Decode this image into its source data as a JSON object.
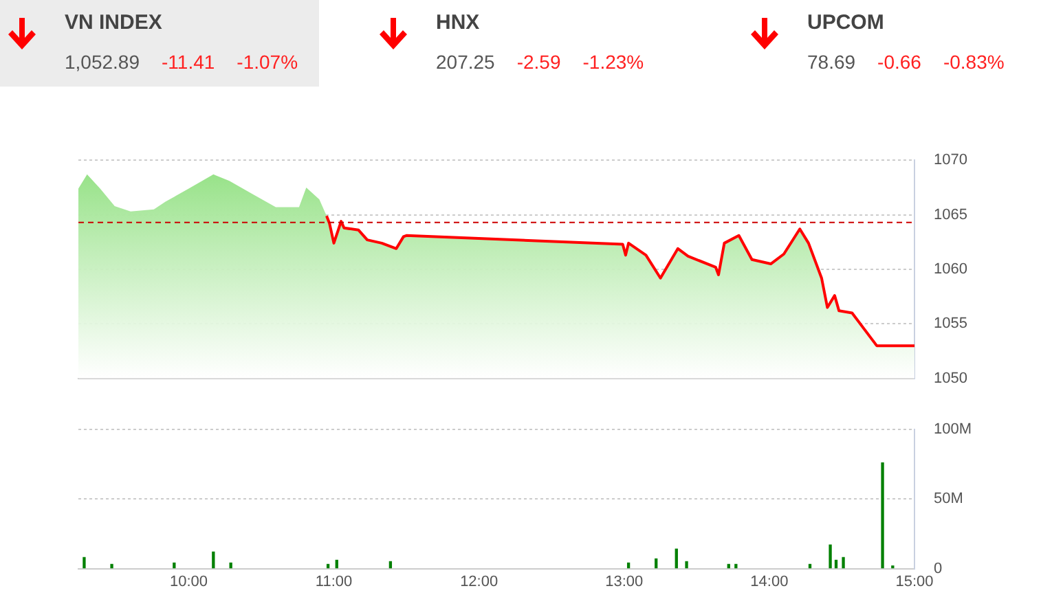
{
  "chart_data": [
    {
      "type": "other",
      "categories": [
        "VN INDEX",
        "HNX",
        "UPCOM"
      ],
      "annotations": [
        "1,052.89",
        "-11.41",
        "-1.07%",
        "207.25",
        "-2.59",
        "-1.23%",
        "78.69",
        "-0.66",
        "-0.83%"
      ]
    },
    {
      "type": "area",
      "x": [
        9.24,
        9.3,
        9.39,
        9.49,
        9.6,
        9.76,
        9.84,
        10,
        10.17,
        10.28,
        10.44,
        10.6,
        10.76,
        10.81,
        10.9,
        10.95,
        10.97,
        11,
        11.05,
        11.07,
        11.17,
        11.23,
        11.33,
        11.43,
        11.48,
        11.5,
        12.99,
        13.01,
        13.03,
        13.15,
        13.25,
        13.37,
        13.44,
        13.63,
        13.65,
        13.69,
        13.79,
        13.88,
        14.01,
        14.1,
        14.21,
        14.27,
        14.36,
        14.4,
        14.45,
        14.48,
        14.57,
        14.74,
        15
      ],
      "series": [
        {
          "color": "#ff0000",
          "values": [
            1067.4,
            1068.7,
            1067.4,
            1065.8,
            1065.3,
            1065.5,
            1066.2,
            1067.4,
            1068.7,
            1068.1,
            1066.9,
            1065.7,
            1065.7,
            1067.5,
            1066.4,
            1064.9,
            1064.2,
            1062.4,
            1064.4,
            1063.8,
            1063.6,
            1062.7,
            1062.4,
            1061.9,
            1063,
            1063.1,
            1062.3,
            1061.3,
            1062.4,
            1061.3,
            1059.2,
            1061.9,
            1061.2,
            1060.2,
            1059.5,
            1062.4,
            1063.1,
            1060.9,
            1060.5,
            1061.4,
            1063.7,
            1062.4,
            1059.2,
            1056.5,
            1057.6,
            1056.2,
            1056,
            1053,
            1053
          ]
        }
      ],
      "xlim": [
        9.24,
        15
      ],
      "ylim": [
        1050,
        1070
      ],
      "yticks": [
        1050,
        1055,
        1060,
        1065,
        1070
      ],
      "tick_labels": "y",
      "grid": "y",
      "ref_lines": [
        {
          "axis": "y",
          "value": 1064.3,
          "color": "#cc0000",
          "line_style": "dashed"
        }
      ]
    },
    {
      "type": "bar",
      "x": [
        9.28,
        9.47,
        9.9,
        10.17,
        10.29,
        10.96,
        11.02,
        11.39,
        13.03,
        13.22,
        13.36,
        13.43,
        13.72,
        13.77,
        14.28,
        14.42,
        14.46,
        14.51,
        14.78,
        14.85
      ],
      "values": [
        8,
        3,
        4,
        12,
        4,
        3,
        6,
        5,
        4,
        7,
        14,
        5,
        3,
        3,
        3,
        17,
        6,
        8,
        76,
        2
      ],
      "color": "#008000",
      "xlim": [
        9.24,
        15
      ],
      "xticks": [
        {
          "value": 10,
          "label": "10:00"
        },
        {
          "value": 11,
          "label": "11:00"
        },
        {
          "value": 12,
          "label": "12:00"
        },
        {
          "value": 13,
          "label": "13:00"
        },
        {
          "value": 14,
          "label": "14:00"
        },
        {
          "value": 15,
          "label": "15:00"
        }
      ],
      "ylim": [
        0,
        100
      ],
      "yticks": [
        0,
        {
          "value": 50,
          "label": "50M"
        },
        {
          "value": 100,
          "label": "100M"
        }
      ],
      "grid": "y"
    }
  ]
}
